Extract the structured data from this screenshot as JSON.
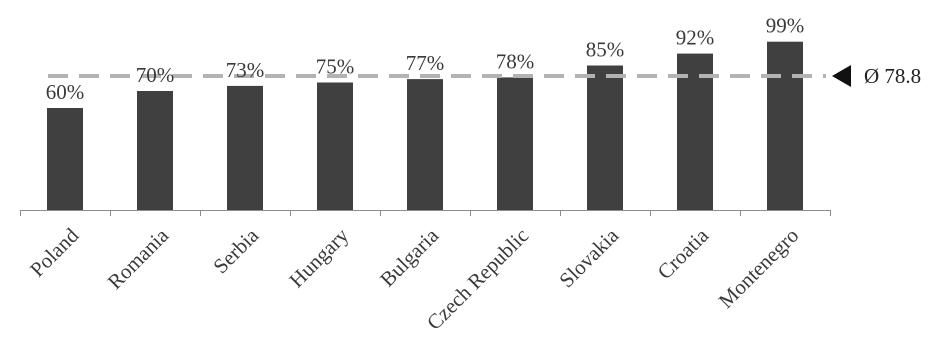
{
  "chart_data": {
    "type": "bar",
    "categories": [
      "Poland",
      "Romania",
      "Serbia",
      "Hungary",
      "Bulgaria",
      "Czech Republic",
      "Slovakia",
      "Croatia",
      "Montenegro"
    ],
    "values": [
      60,
      70,
      73,
      75,
      77,
      78,
      85,
      92,
      99
    ],
    "value_labels": [
      "60%",
      "70%",
      "73%",
      "75%",
      "77%",
      "78%",
      "85%",
      "92%",
      "99%"
    ],
    "average": 78.8,
    "average_label": "Ø 78.8",
    "title": "",
    "xlabel": "",
    "ylabel": "",
    "ylim": [
      0,
      100
    ],
    "grid": false,
    "colors": {
      "bar": "#404040",
      "average_line": "#b3b3b3",
      "marker": "#111111",
      "axis": "#8c8c8c"
    }
  }
}
